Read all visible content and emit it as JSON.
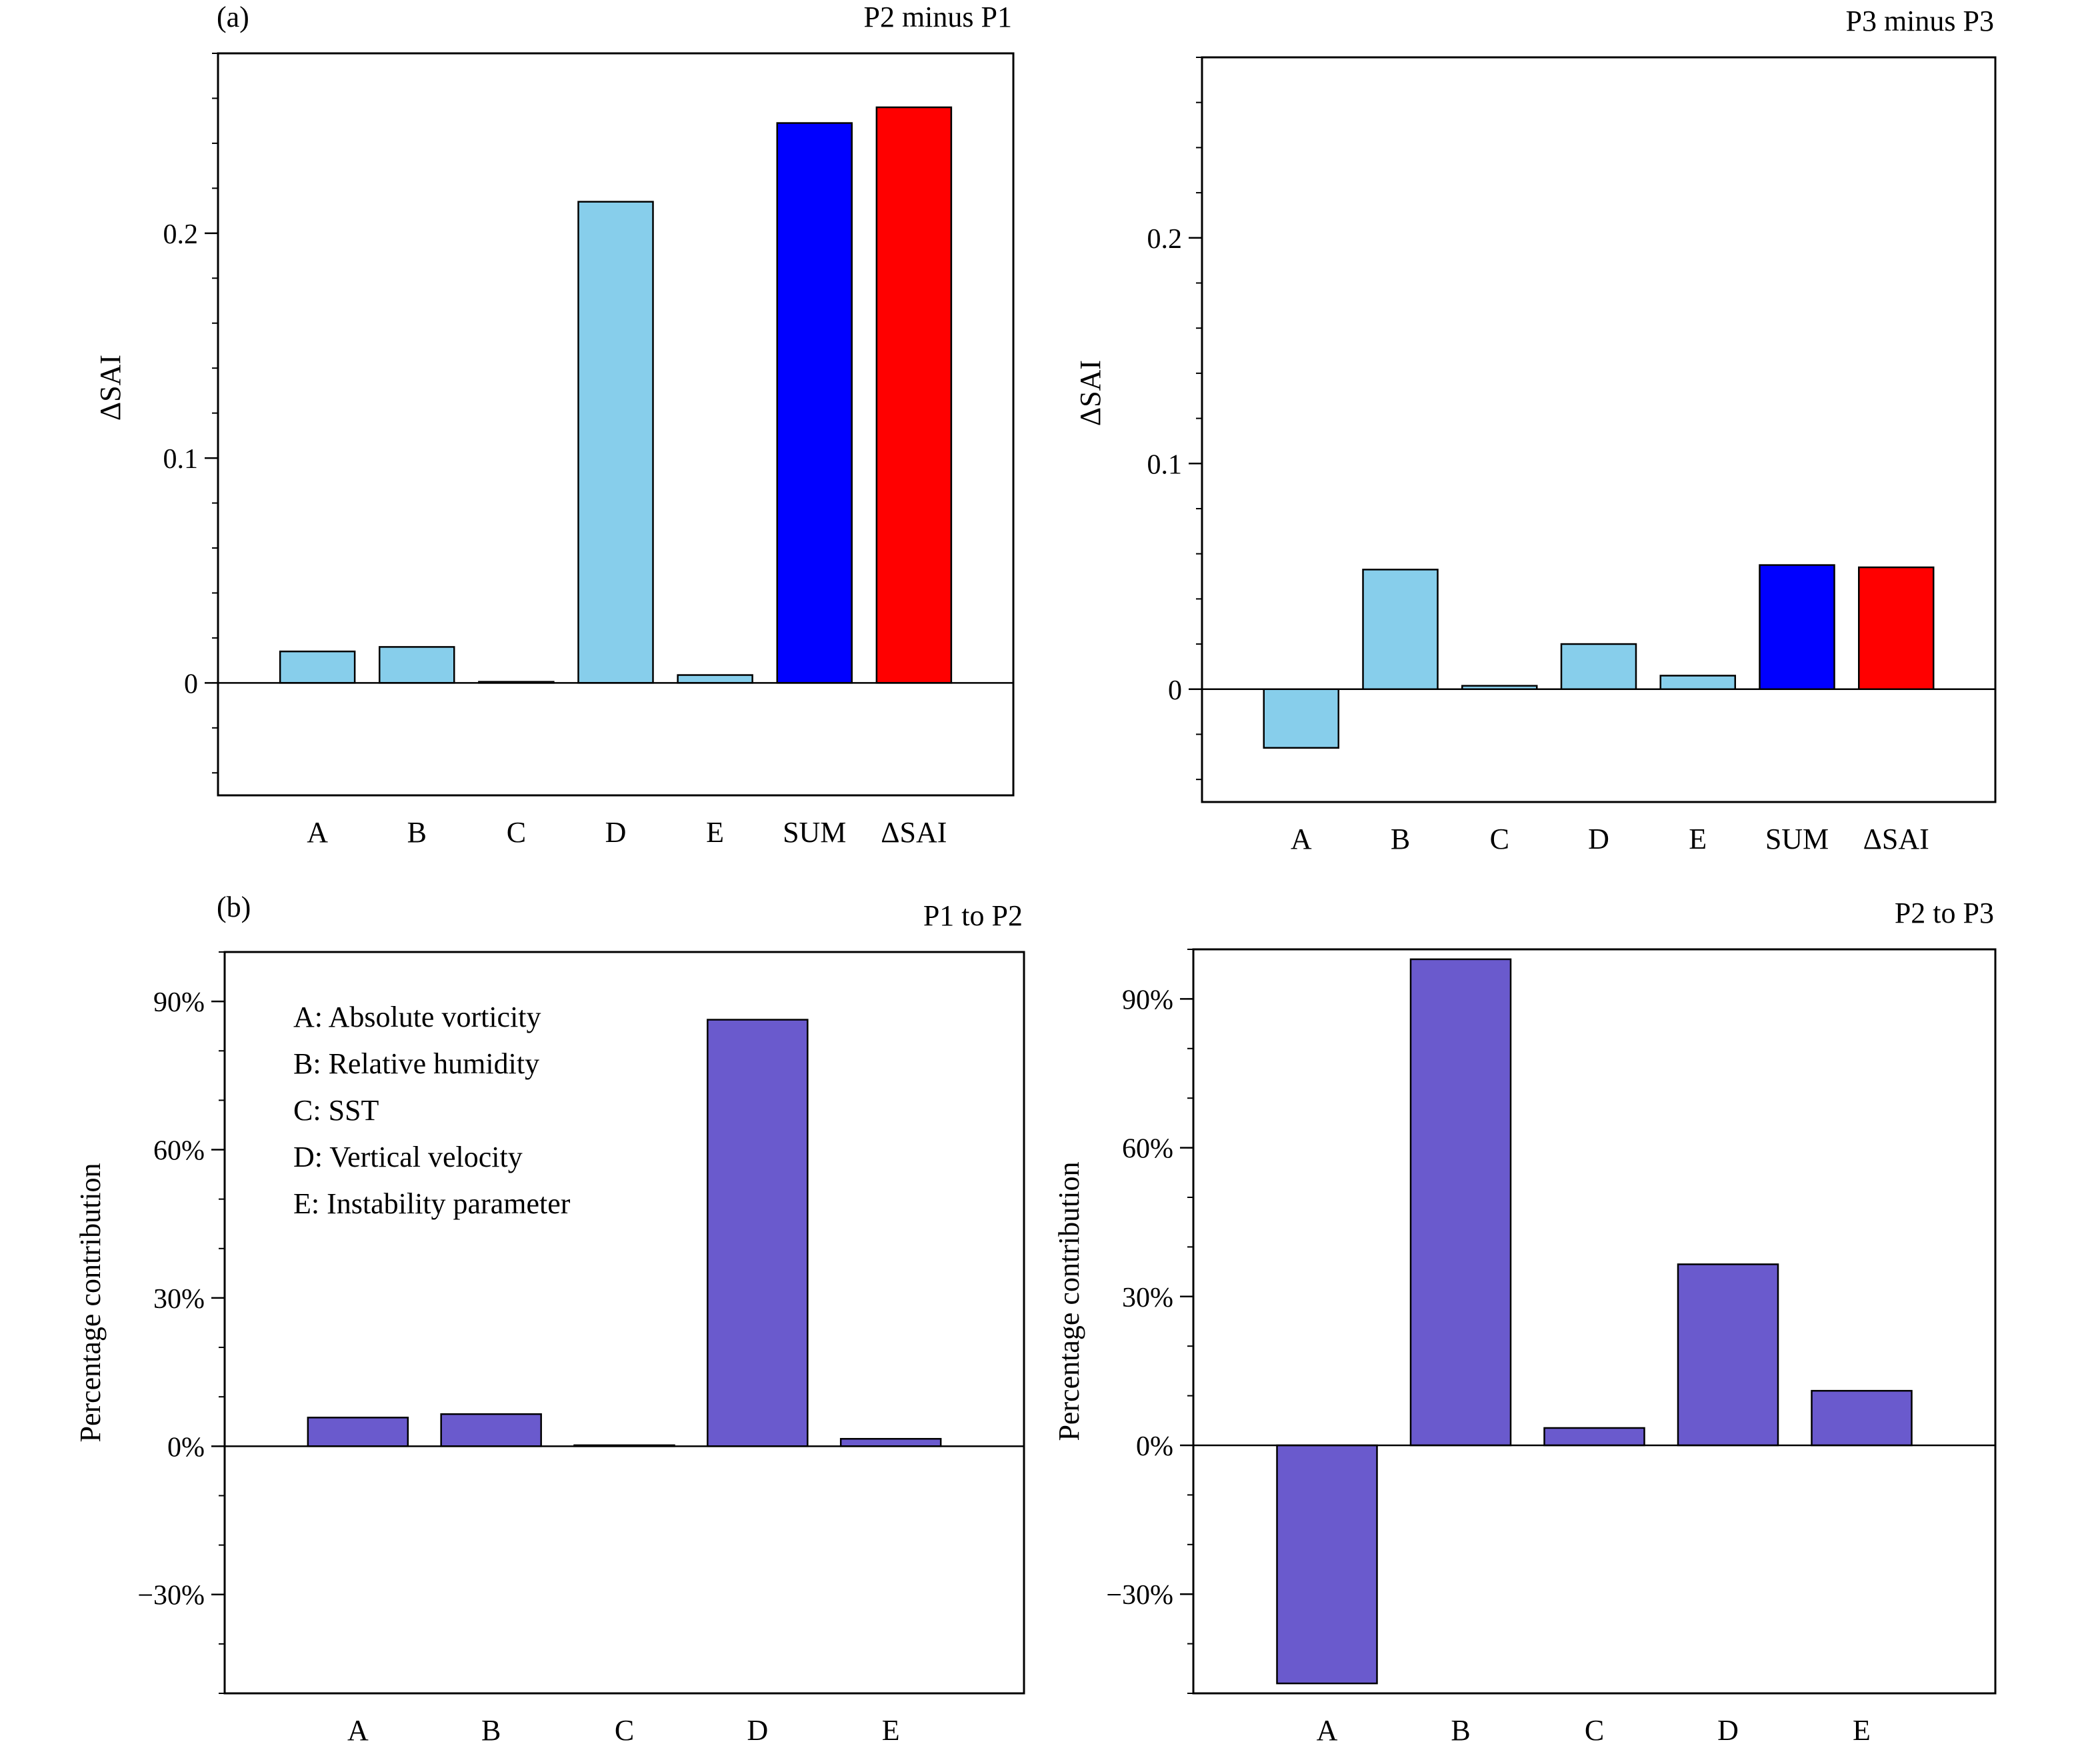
{
  "figure": {
    "panel_labels": [
      "(a)",
      "(b)"
    ],
    "legend": [
      "A: Absolute vorticity",
      "B: Relative humidity",
      "C: SST",
      "D: Vertical velocity",
      "E: Instability parameter"
    ]
  },
  "colors": {
    "factor_bar": "#87ceeb",
    "sum_bar": "#0000ff",
    "dsai_bar": "#ff0000",
    "percent_bar": "#6a5acd",
    "axes": "#000000"
  },
  "chart_data": [
    {
      "type": "bar",
      "title": "P2 minus P1",
      "ylabel": "ΔSAI",
      "categories": [
        "A",
        "B",
        "C",
        "D",
        "E",
        "SUM",
        "ΔSAI"
      ],
      "values": [
        0.014,
        0.016,
        0.0005,
        0.214,
        0.0035,
        0.249,
        0.256
      ],
      "bar_colors": [
        "factor_bar",
        "factor_bar",
        "factor_bar",
        "factor_bar",
        "factor_bar",
        "sum_bar",
        "dsai_bar"
      ],
      "ylim": [
        -0.05,
        0.28
      ],
      "yticks": [
        0,
        0.1,
        0.2
      ],
      "ytick_labels": [
        "0",
        "0.1",
        "0.2"
      ],
      "minor_step": 0.02
    },
    {
      "type": "bar",
      "title": "P3 minus P3",
      "ylabel": "ΔSAI",
      "categories": [
        "A",
        "B",
        "C",
        "D",
        "E",
        "SUM",
        "ΔSAI"
      ],
      "values": [
        -0.026,
        0.053,
        0.0015,
        0.02,
        0.006,
        0.055,
        0.054
      ],
      "bar_colors": [
        "factor_bar",
        "factor_bar",
        "factor_bar",
        "factor_bar",
        "factor_bar",
        "sum_bar",
        "dsai_bar"
      ],
      "ylim": [
        -0.05,
        0.28
      ],
      "yticks": [
        0,
        0.1,
        0.2
      ],
      "ytick_labels": [
        "0",
        "0.1",
        "0.2"
      ],
      "minor_step": 0.02
    },
    {
      "type": "bar",
      "title": "P1 to P2",
      "ylabel": "Percentage contribution",
      "categories": [
        "A",
        "B",
        "C",
        "D",
        "E"
      ],
      "values": [
        5.8,
        6.5,
        0.2,
        86.3,
        1.5
      ],
      "bar_colors": [
        "percent_bar",
        "percent_bar",
        "percent_bar",
        "percent_bar",
        "percent_bar"
      ],
      "ylim": [
        -50,
        100
      ],
      "yticks": [
        -30,
        0,
        30,
        60,
        90
      ],
      "ytick_labels": [
        "−30%",
        "0%",
        "30%",
        "60%",
        "90%"
      ],
      "minor_step": 10
    },
    {
      "type": "bar",
      "title": "P2 to P3",
      "ylabel": "Percentage contribution",
      "categories": [
        "A",
        "B",
        "C",
        "D",
        "E"
      ],
      "values": [
        -48,
        98,
        3.5,
        36.5,
        11
      ],
      "bar_colors": [
        "percent_bar",
        "percent_bar",
        "percent_bar",
        "percent_bar",
        "percent_bar"
      ],
      "ylim": [
        -50,
        100
      ],
      "yticks": [
        -30,
        0,
        30,
        60,
        90
      ],
      "ytick_labels": [
        "−30%",
        "0%",
        "30%",
        "60%",
        "90%"
      ],
      "minor_step": 10
    }
  ]
}
